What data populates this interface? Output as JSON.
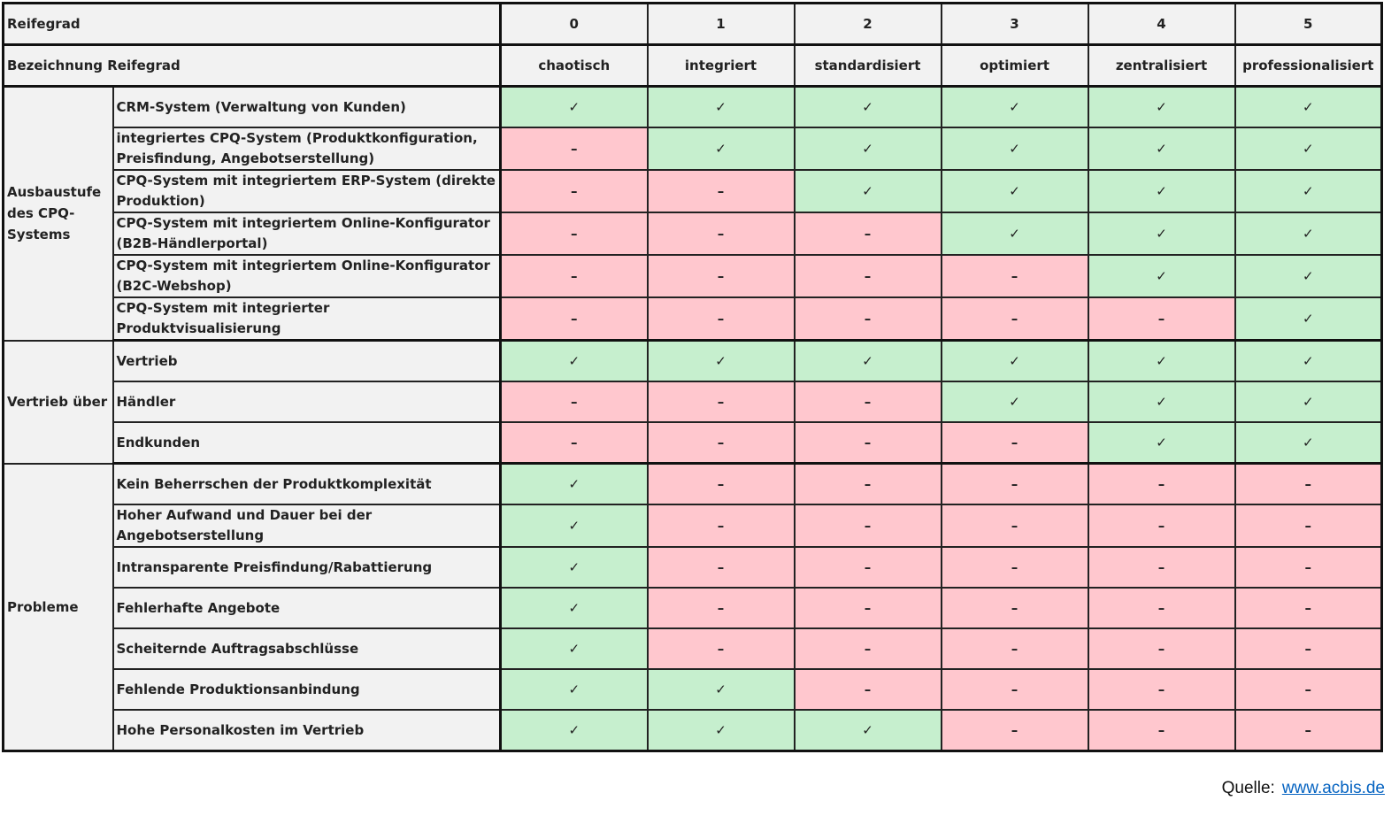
{
  "header": {
    "row1_label": "Reifegrad",
    "row2_label": "Bezeichnung Reifegrad",
    "levels": [
      "0",
      "1",
      "2",
      "3",
      "4",
      "5"
    ],
    "names": [
      "chaotisch",
      "integriert",
      "standardisiert",
      "optimiert",
      "zentralisiert",
      "professionalisiert"
    ]
  },
  "symbols": {
    "yes": "✓",
    "no": "–"
  },
  "colors": {
    "yes": "#c6efce",
    "no": "#ffc7ce",
    "label_bg": "#f2f2f2"
  },
  "groups": [
    {
      "title": "Ausbaustufe des CPQ-Systems",
      "rows": [
        {
          "label": "CRM-System (Verwaltung von Kunden)",
          "values": [
            1,
            1,
            1,
            1,
            1,
            1
          ]
        },
        {
          "label": "integriertes CPQ-System (Produktkonfiguration, Preisfindung, Angebotserstellung)",
          "values": [
            0,
            1,
            1,
            1,
            1,
            1
          ]
        },
        {
          "label": "CPQ-System mit integriertem ERP-System (direkte Produktion)",
          "values": [
            0,
            0,
            1,
            1,
            1,
            1
          ]
        },
        {
          "label": "CPQ-System mit integriertem Online-Konfigurator (B2B-Händlerportal)",
          "values": [
            0,
            0,
            0,
            1,
            1,
            1
          ]
        },
        {
          "label": "CPQ-System mit integriertem Online-Konfigurator (B2C-Webshop)",
          "values": [
            0,
            0,
            0,
            0,
            1,
            1
          ]
        },
        {
          "label": "CPQ-System mit integrierter Produktvisualisierung",
          "values": [
            0,
            0,
            0,
            0,
            0,
            1
          ]
        }
      ]
    },
    {
      "title": "Vertrieb über",
      "rows": [
        {
          "label": "Vertrieb",
          "values": [
            1,
            1,
            1,
            1,
            1,
            1
          ]
        },
        {
          "label": "Händler",
          "values": [
            0,
            0,
            0,
            1,
            1,
            1
          ]
        },
        {
          "label": "Endkunden",
          "values": [
            0,
            0,
            0,
            0,
            1,
            1
          ]
        }
      ]
    },
    {
      "title": "Probleme",
      "rows": [
        {
          "label": "Kein Beherrschen der Produktkomplexität",
          "values": [
            1,
            0,
            0,
            0,
            0,
            0
          ]
        },
        {
          "label": "Hoher Aufwand und Dauer bei der Angebotserstellung",
          "values": [
            1,
            0,
            0,
            0,
            0,
            0
          ]
        },
        {
          "label": "Intransparente Preisfindung/Rabattierung",
          "values": [
            1,
            0,
            0,
            0,
            0,
            0
          ]
        },
        {
          "label": "Fehlerhafte Angebote",
          "values": [
            1,
            0,
            0,
            0,
            0,
            0
          ]
        },
        {
          "label": "Scheiternde Auftragsabschlüsse",
          "values": [
            1,
            0,
            0,
            0,
            0,
            0
          ]
        },
        {
          "label": "Fehlende Produktionsanbindung",
          "values": [
            1,
            1,
            0,
            0,
            0,
            0
          ]
        },
        {
          "label": "Hohe Personalkosten im Vertrieb",
          "values": [
            1,
            1,
            1,
            0,
            0,
            0
          ]
        }
      ]
    }
  ],
  "footer": {
    "source_label": "Quelle:",
    "link_text": "www.acbis.de"
  }
}
